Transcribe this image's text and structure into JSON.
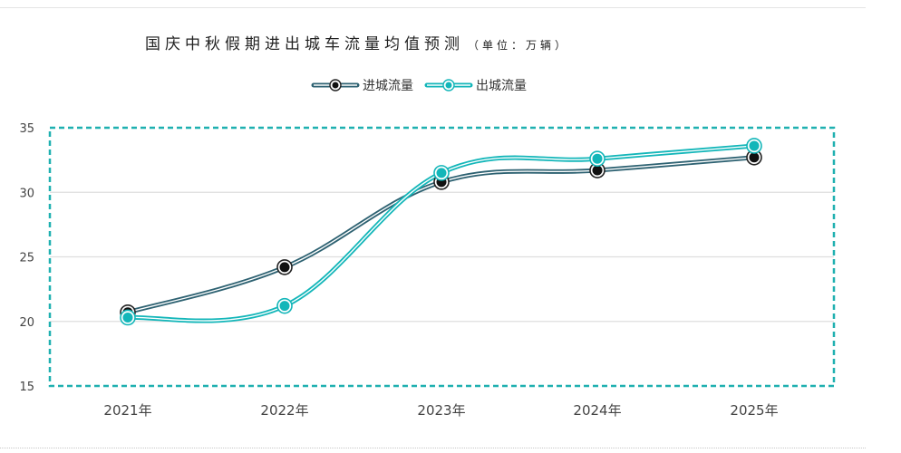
{
  "chart_data": {
    "type": "line",
    "title": "国庆中秋假期进出城车流量均值预测",
    "unit_note": "（单位：万辆）",
    "categories": [
      "2021年",
      "2022年",
      "2023年",
      "2024年",
      "2025年"
    ],
    "series": [
      {
        "name": "进城流量",
        "values": [
          20.7,
          24.2,
          30.8,
          31.7,
          32.7
        ],
        "color": "#2e6272"
      },
      {
        "name": "出城流量",
        "values": [
          20.3,
          21.2,
          31.5,
          32.6,
          33.6
        ],
        "color": "#13b6b9"
      }
    ],
    "ylim": [
      15,
      35
    ],
    "yticks": [
      15,
      20,
      25,
      30,
      35
    ],
    "grid": true,
    "legend": "top-center",
    "frame_color": "#1fb0b0"
  }
}
